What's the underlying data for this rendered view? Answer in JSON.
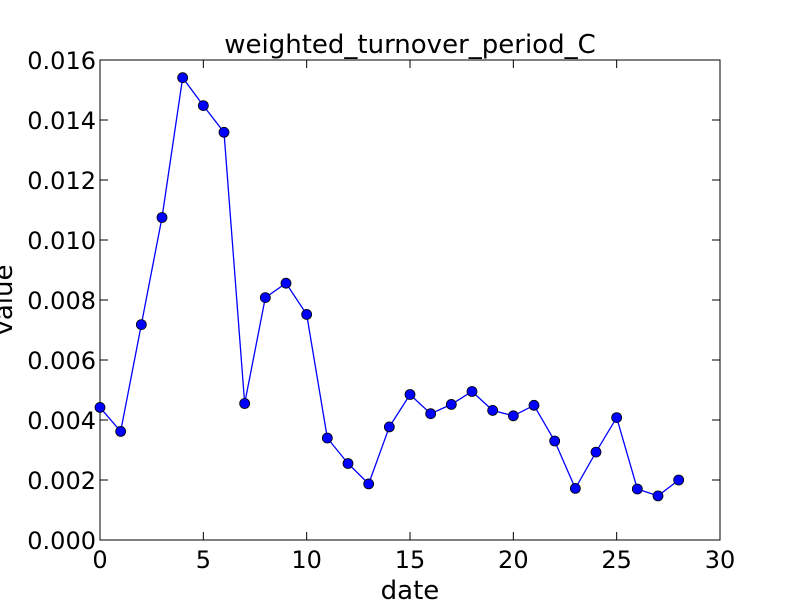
{
  "chart_data": {
    "type": "line",
    "title": "weighted_turnover_period_C",
    "xlabel": "date",
    "ylabel": "value",
    "xlim": [
      0,
      30
    ],
    "ylim": [
      0,
      0.016
    ],
    "xticks": [
      0,
      5,
      10,
      15,
      20,
      25,
      30
    ],
    "yticks": [
      0,
      0.002,
      0.004,
      0.006,
      0.008,
      0.01,
      0.012,
      0.014,
      0.016
    ],
    "xtick_labels": [
      "0",
      "5",
      "10",
      "15",
      "20",
      "25",
      "30"
    ],
    "ytick_labels": [
      "0.000",
      "0.002",
      "0.004",
      "0.006",
      "0.008",
      "0.010",
      "0.012",
      "0.014",
      "0.016"
    ],
    "grid": false,
    "series": [
      {
        "color": "#0000ff",
        "marker": "circle",
        "x": [
          0,
          1,
          2,
          3,
          4,
          5,
          6,
          7,
          8,
          9,
          10,
          11,
          12,
          13,
          14,
          15,
          16,
          17,
          18,
          19,
          20,
          21,
          22,
          23,
          24,
          25,
          26,
          27,
          28
        ],
        "y": [
          0.00442,
          0.00362,
          0.00718,
          0.01075,
          0.01541,
          0.01448,
          0.01359,
          0.00455,
          0.00808,
          0.00856,
          0.00752,
          0.0034,
          0.00255,
          0.00187,
          0.00377,
          0.00485,
          0.00421,
          0.00452,
          0.00495,
          0.00432,
          0.00414,
          0.00449,
          0.0033,
          0.00172,
          0.00293,
          0.00408,
          0.0017,
          0.00147,
          0.002
        ]
      }
    ]
  }
}
